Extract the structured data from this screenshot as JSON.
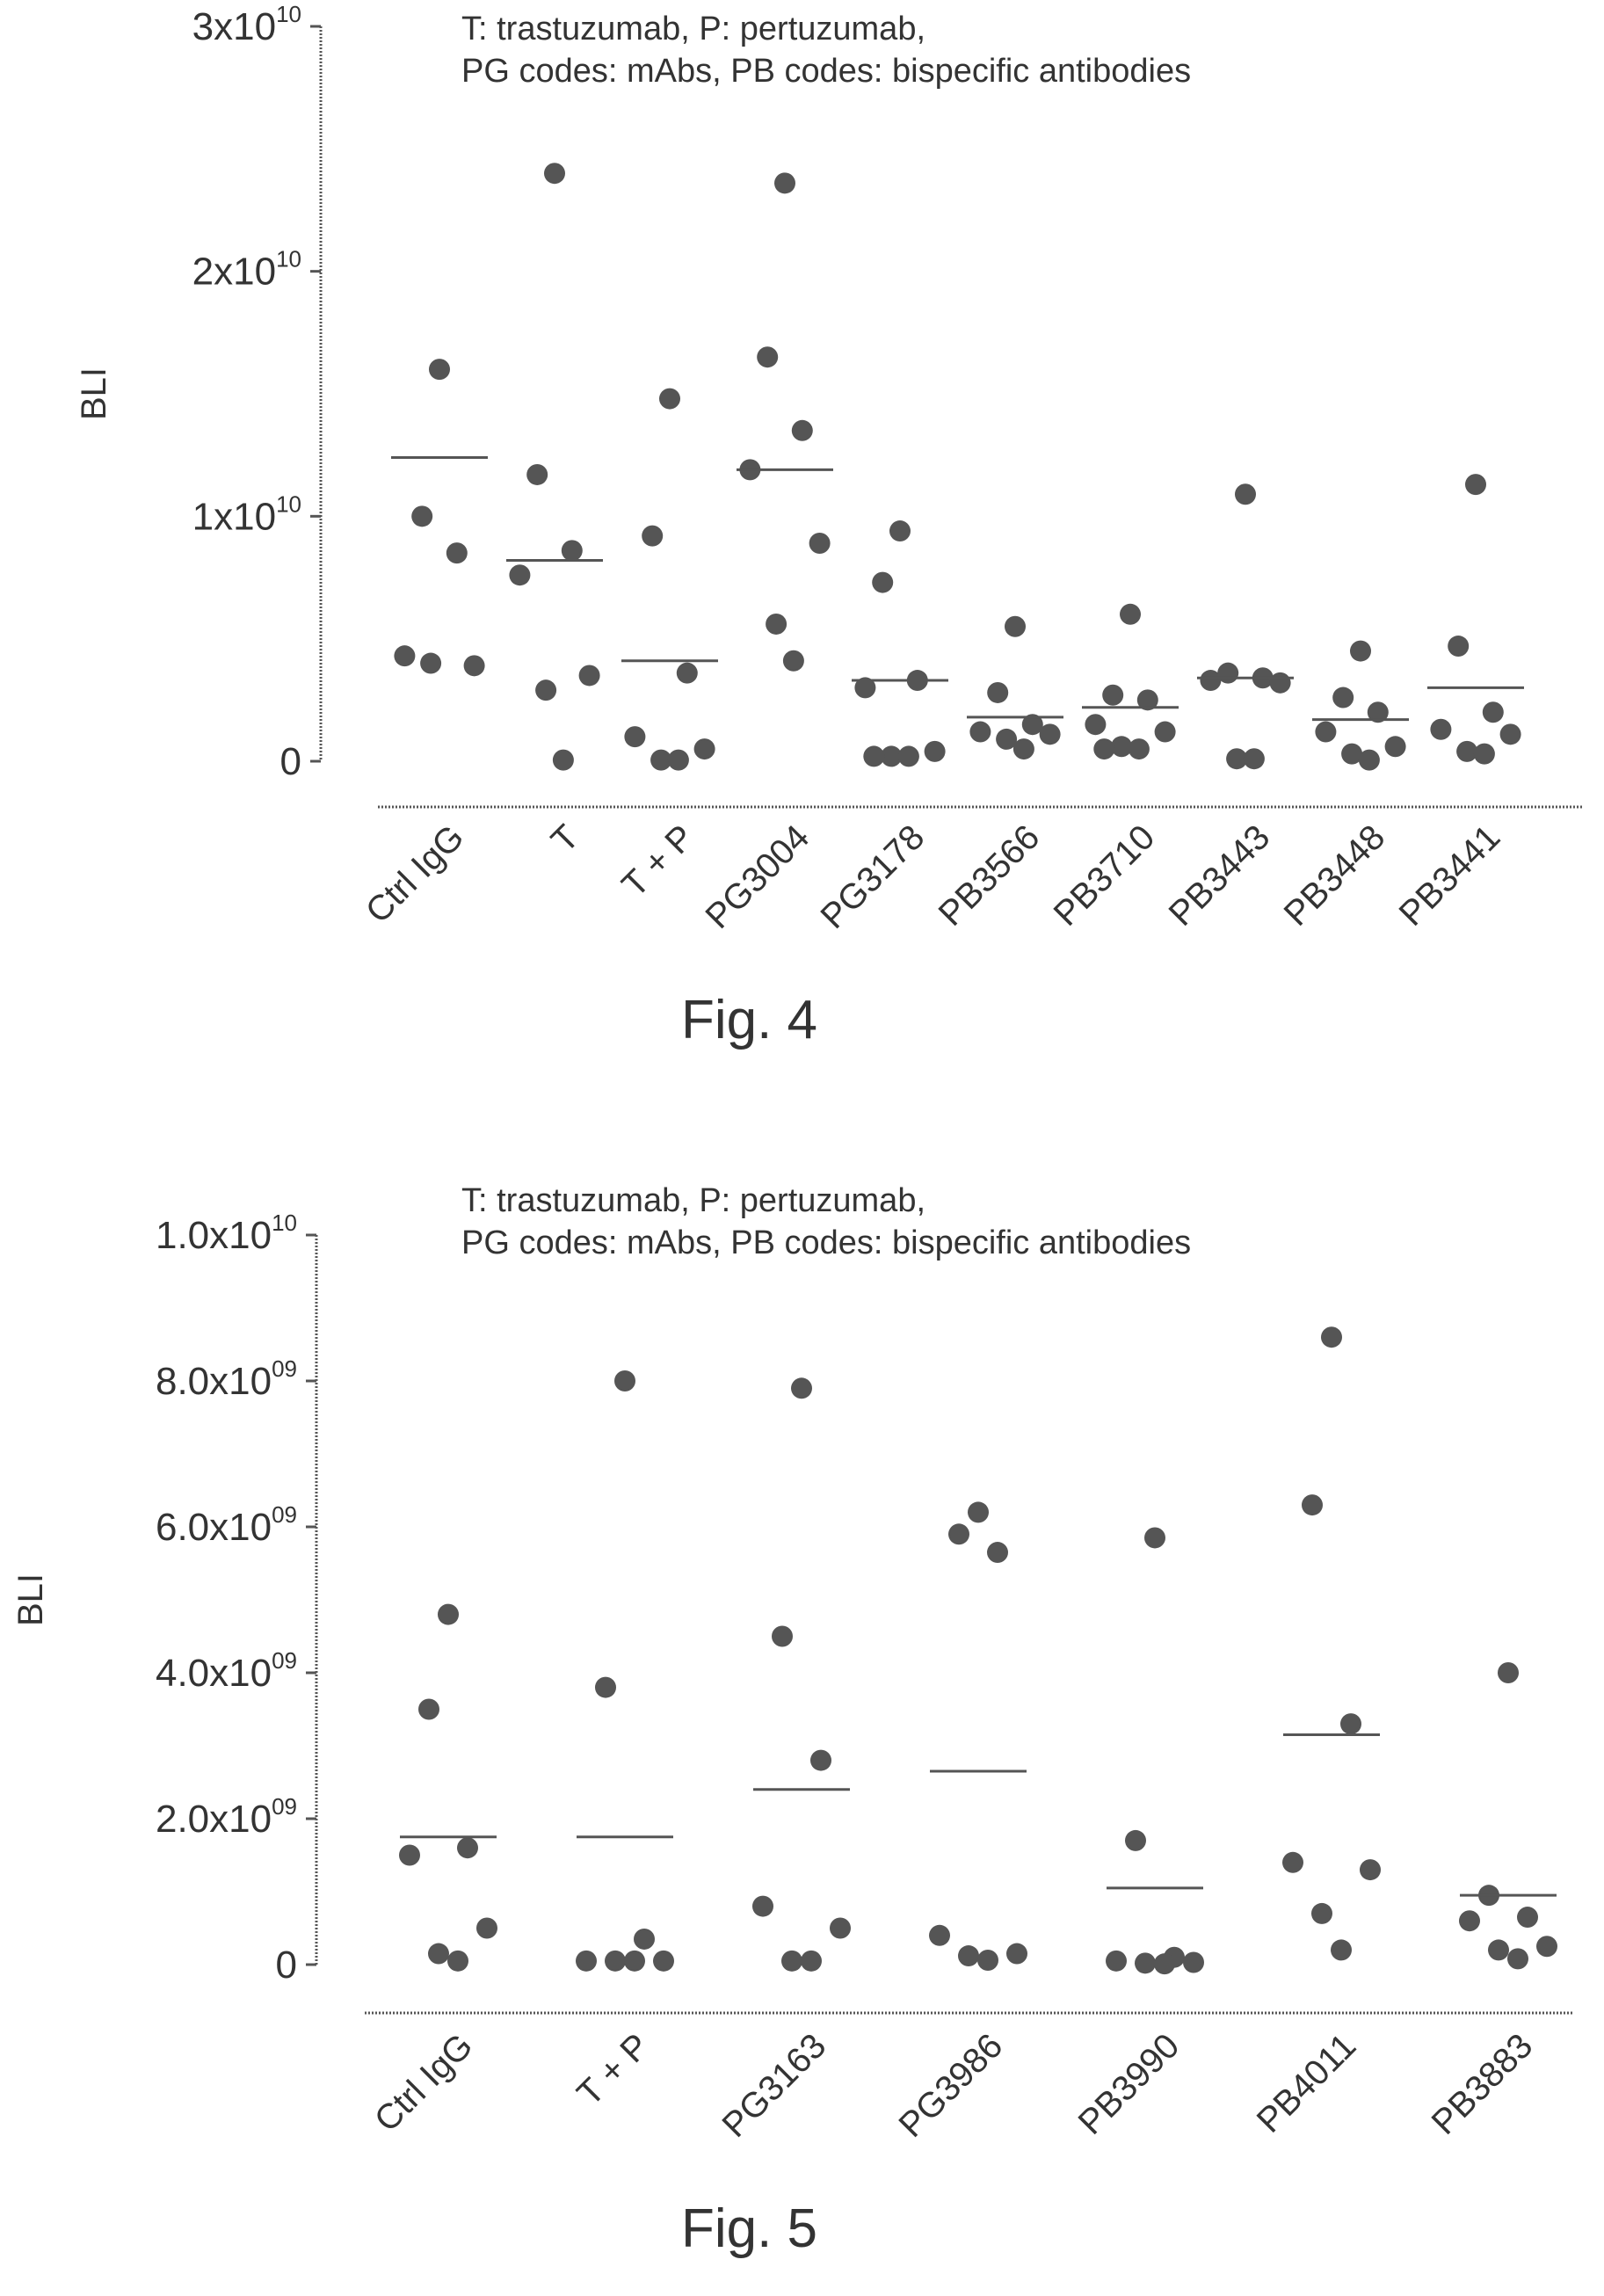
{
  "chart_data": [
    {
      "type": "scatter",
      "caption": "Fig. 4",
      "note_lines": [
        "T: trastuzumab, P: pertuzumab,",
        "PG codes: mAbs, PB codes: bispecific antibodies"
      ],
      "ylabel": "BLI",
      "ylim": [
        0,
        30000000000
      ],
      "yticks": [
        {
          "value": 0,
          "mantissa": "0",
          "exponent": ""
        },
        {
          "value": 10000000000,
          "mantissa": "1x10",
          "exponent": "10"
        },
        {
          "value": 20000000000,
          "mantissa": "2x10",
          "exponent": "10"
        },
        {
          "value": 30000000000,
          "mantissa": "3x10",
          "exponent": "10"
        }
      ],
      "grid": false,
      "categories": [
        "Ctrl IgG",
        "T",
        "T + P",
        "PG3004",
        "PG3178",
        "PB3566",
        "PB3710",
        "PB3443",
        "PB3448",
        "PB3441"
      ],
      "points": [
        [
          16000000000,
          10000000000,
          8500000000,
          4300000000,
          3900000000,
          4000000000
        ],
        [
          24000000000,
          11700000000,
          8600000000,
          7600000000,
          3500000000,
          2900000000,
          50000000
        ],
        [
          14800000000,
          9200000000,
          3600000000,
          1000000000,
          500000000,
          50000000,
          50000000
        ],
        [
          23600000000,
          16500000000,
          13500000000,
          11900000000,
          8900000000,
          5600000000,
          4100000000
        ],
        [
          9400000000,
          7300000000,
          3300000000,
          3000000000,
          400000000,
          200000000,
          200000000,
          200000000
        ],
        [
          5500000000,
          2800000000,
          1500000000,
          1200000000,
          1100000000,
          900000000,
          500000000
        ],
        [
          6000000000,
          2700000000,
          2500000000,
          1500000000,
          1200000000,
          600000000,
          500000000,
          500000000
        ],
        [
          10900000000,
          3600000000,
          3400000000,
          3300000000,
          3200000000,
          100000000,
          100000000
        ],
        [
          4500000000,
          2600000000,
          2000000000,
          1200000000,
          600000000,
          300000000,
          50000000
        ],
        [
          11300000000,
          4700000000,
          2000000000,
          1300000000,
          1100000000,
          400000000,
          300000000
        ]
      ],
      "means": [
        12400000000,
        8200000000,
        4100000000,
        11900000000,
        3300000000,
        1800000000,
        2200000000,
        3400000000,
        1700000000,
        3000000000
      ]
    },
    {
      "type": "scatter",
      "caption": "Fig. 5",
      "note_lines": [
        "T: trastuzumab, P: pertuzumab,",
        "PG codes: mAbs, PB codes: bispecific antibodies"
      ],
      "ylabel": "BLI",
      "ylim": [
        0,
        10000000000
      ],
      "yticks": [
        {
          "value": 0,
          "mantissa": "0",
          "exponent": ""
        },
        {
          "value": 2000000000,
          "mantissa": "2.0x10",
          "exponent": "09"
        },
        {
          "value": 4000000000,
          "mantissa": "4.0x10",
          "exponent": "09"
        },
        {
          "value": 6000000000,
          "mantissa": "6.0x10",
          "exponent": "09"
        },
        {
          "value": 8000000000,
          "mantissa": "8.0x10",
          "exponent": "09"
        },
        {
          "value": 10000000000,
          "mantissa": "1.0x10",
          "exponent": "10"
        }
      ],
      "grid": false,
      "categories": [
        "Ctrl IgG",
        "T + P",
        "PG3163",
        "PG3986",
        "PB3990",
        "PB4011",
        "PB3883"
      ],
      "points": [
        [
          4800000000,
          3500000000,
          1600000000,
          1500000000,
          500000000,
          150000000,
          50000000
        ],
        [
          8000000000,
          3800000000,
          350000000,
          50000000,
          50000000,
          50000000,
          50000000
        ],
        [
          7900000000,
          4500000000,
          2800000000,
          800000000,
          500000000,
          50000000,
          50000000
        ],
        [
          6200000000,
          5900000000,
          5650000000,
          400000000,
          150000000,
          120000000,
          60000000
        ],
        [
          5850000000,
          1700000000,
          100000000,
          50000000,
          30000000,
          20000000,
          10000000
        ],
        [
          8600000000,
          6300000000,
          3300000000,
          1400000000,
          1300000000,
          700000000,
          200000000
        ],
        [
          4000000000,
          950000000,
          650000000,
          600000000,
          250000000,
          200000000,
          80000000
        ]
      ],
      "means": [
        1750000000,
        1750000000,
        2400000000,
        2650000000,
        1050000000,
        3150000000,
        950000000
      ]
    }
  ]
}
